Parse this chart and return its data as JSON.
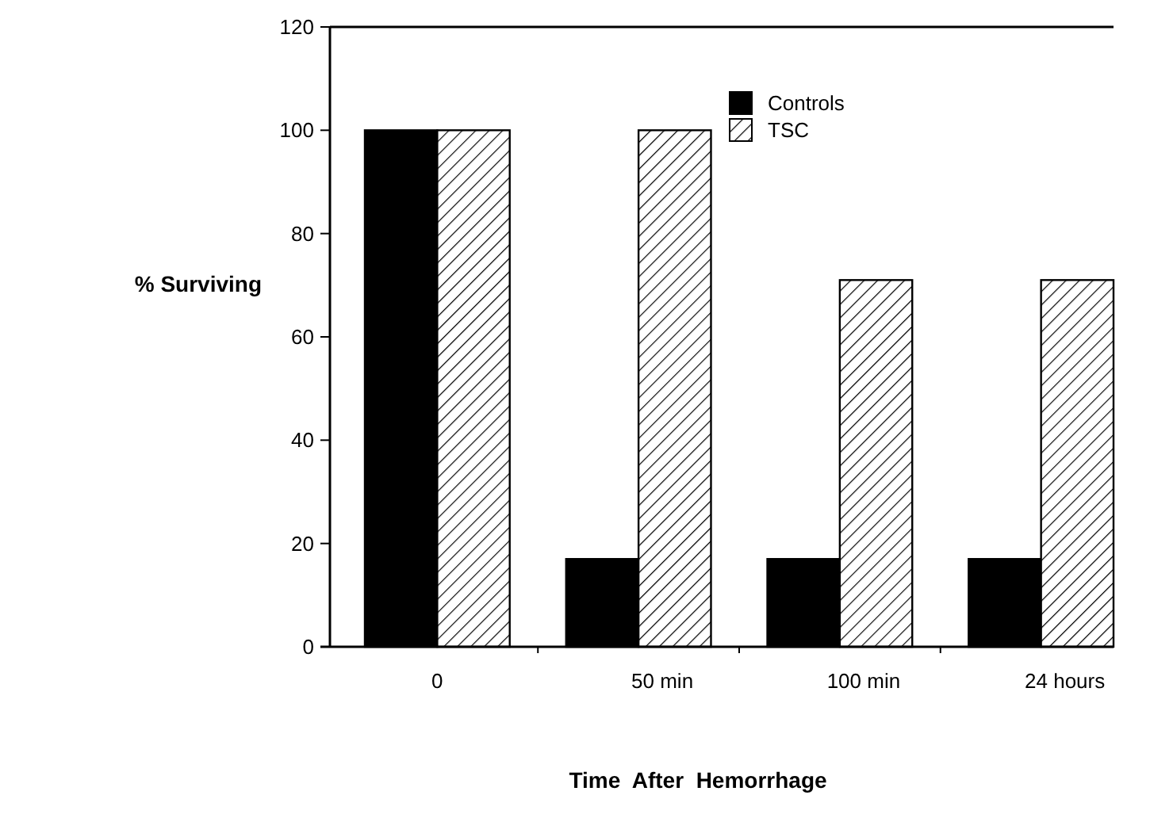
{
  "chart_data": {
    "type": "bar",
    "xlabel": "Time  After  Hemorrhage",
    "ylabel": "% Surviving",
    "categories": [
      "0",
      "50 min",
      "100 min",
      "24 hours"
    ],
    "series": [
      {
        "name": "Controls",
        "color": "#000000",
        "values": [
          100,
          17,
          17,
          17
        ]
      },
      {
        "name": "TSC",
        "color": "#000000",
        "values": [
          100,
          100,
          71,
          71
        ]
      }
    ],
    "ylim": [
      0,
      120
    ],
    "yticks": [
      0,
      20,
      40,
      60,
      80,
      100,
      120
    ],
    "grid": false,
    "legend": "top right"
  }
}
